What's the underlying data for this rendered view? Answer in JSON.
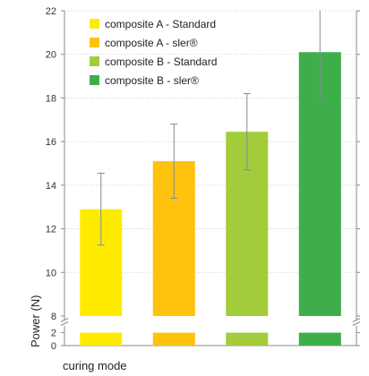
{
  "chart_data": {
    "type": "bar",
    "xlabel": "curing mode",
    "ylabel": "Power (N)",
    "axis_break": {
      "lower_range": [
        0,
        2.5
      ],
      "upper_range": [
        8,
        22
      ]
    },
    "y_ticks_upper": [
      8,
      10,
      12,
      14,
      16,
      18,
      20,
      22
    ],
    "y_ticks_lower": [
      0,
      2
    ],
    "grid": true,
    "legend_position": "top-left",
    "series": [
      {
        "name": "composite A - Standard",
        "value": 12.9,
        "error": 1.65,
        "color": "#FFEB00"
      },
      {
        "name": "composite A - sler®",
        "value": 15.1,
        "error": 1.7,
        "color": "#FFC20E"
      },
      {
        "name": "composite B - Standard",
        "value": 16.45,
        "error": 1.75,
        "color": "#A3CC3A"
      },
      {
        "name": "composite B - sler®",
        "value": 20.1,
        "error": 2.1,
        "color": "#3DAE4A"
      }
    ]
  }
}
